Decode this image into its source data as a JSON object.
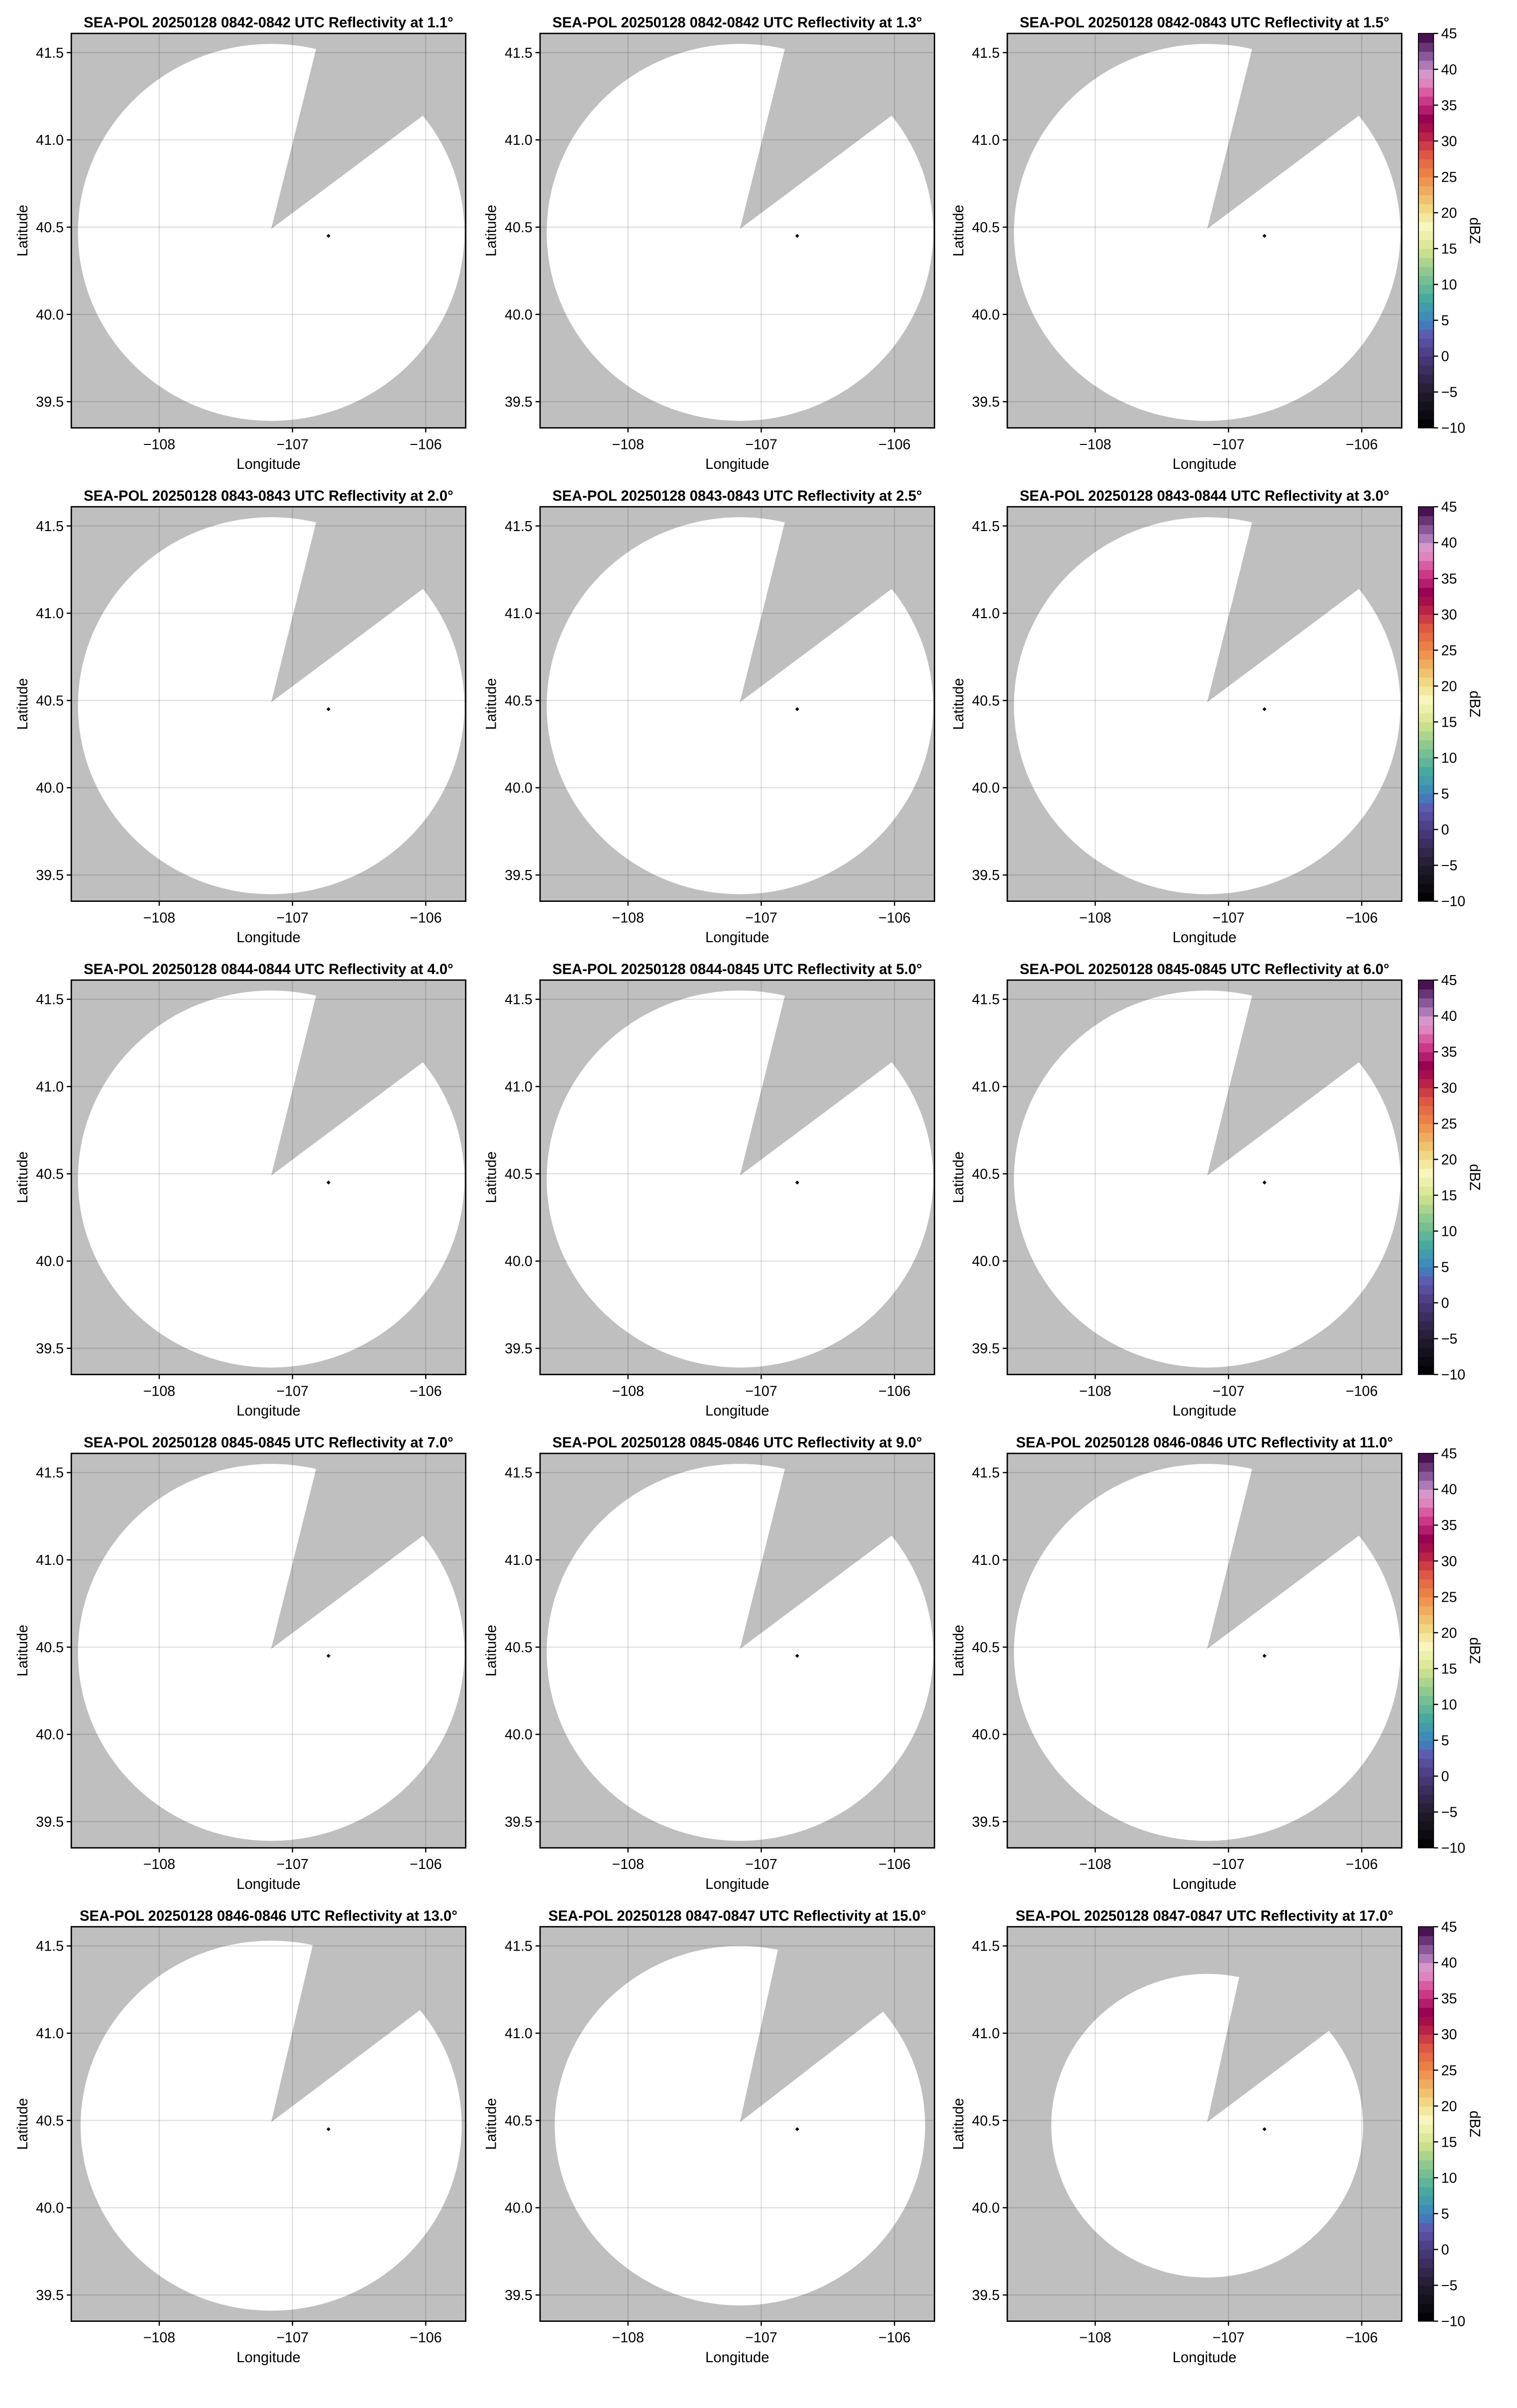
{
  "chart_data": {
    "type": "heatmap",
    "layout": {
      "rows": 5,
      "cols": 3
    },
    "xlabel": "Longitude",
    "ylabel": "Latitude",
    "xlim": [
      -108.66,
      -105.7
    ],
    "ylim": [
      39.35,
      41.61
    ],
    "xticks": [
      -108,
      -107,
      -106
    ],
    "xtick_labels": [
      "−108",
      "−107",
      "−106"
    ],
    "yticks": [
      39.5,
      40.0,
      40.5,
      41.0,
      41.5
    ],
    "ytick_labels": [
      "39.5",
      "40.0",
      "40.5",
      "41.0",
      "41.5"
    ],
    "grid": true,
    "background_color": "#bfbfbf",
    "coverage_color": "#ffffff",
    "colorbar": {
      "label": "dBZ",
      "range": [
        -10,
        45
      ],
      "ticks": [
        -10,
        -5,
        0,
        5,
        10,
        15,
        20,
        25,
        30,
        35,
        40,
        45
      ],
      "tick_labels": [
        "−10",
        "−5",
        "0",
        "5",
        "10",
        "15",
        "20",
        "25",
        "30",
        "35",
        "40",
        "45"
      ],
      "step": 2.5,
      "colormap_stops": [
        {
          "v": -10,
          "c": "#000000"
        },
        {
          "v": -5,
          "c": "#221c2e"
        },
        {
          "v": 0,
          "c": "#4a3a7e"
        },
        {
          "v": 3,
          "c": "#5e5ab0"
        },
        {
          "v": 5,
          "c": "#3d85c0"
        },
        {
          "v": 8,
          "c": "#46a8a0"
        },
        {
          "v": 11,
          "c": "#7cc291"
        },
        {
          "v": 15,
          "c": "#d6e48e"
        },
        {
          "v": 18,
          "c": "#f8f8c0"
        },
        {
          "v": 21,
          "c": "#f0d27a"
        },
        {
          "v": 25,
          "c": "#ee8a48"
        },
        {
          "v": 28,
          "c": "#e05a44"
        },
        {
          "v": 31,
          "c": "#b51a48"
        },
        {
          "v": 33,
          "c": "#960050"
        },
        {
          "v": 36,
          "c": "#d44090"
        },
        {
          "v": 39,
          "c": "#e4a0d0"
        },
        {
          "v": 41,
          "c": "#a070b0"
        },
        {
          "v": 45,
          "c": "#3a0040"
        }
      ]
    },
    "panels": [
      {
        "title": "SEA-POL 20250128 0842-0842 UTC Reflectivity at 1.1°",
        "elevation_deg": 1.1,
        "range_lon": 1.45,
        "range_lat": 1.08,
        "blocked_sector": [
          [
            -106.82,
            41.53
          ],
          [
            -106.02,
            41.14
          ]
        ]
      },
      {
        "title": "SEA-POL 20250128 0842-0842 UTC Reflectivity at 1.3°",
        "elevation_deg": 1.3,
        "range_lon": 1.45,
        "range_lat": 1.08,
        "blocked_sector": [
          [
            -106.82,
            41.53
          ],
          [
            -106.02,
            41.14
          ]
        ]
      },
      {
        "title": "SEA-POL 20250128 0842-0843 UTC Reflectivity at 1.5°",
        "elevation_deg": 1.5,
        "range_lon": 1.45,
        "range_lat": 1.08,
        "blocked_sector": [
          [
            -106.82,
            41.53
          ],
          [
            -106.02,
            41.14
          ]
        ]
      },
      {
        "title": "SEA-POL 20250128 0843-0843 UTC Reflectivity at 2.0°",
        "elevation_deg": 2.0,
        "range_lon": 1.45,
        "range_lat": 1.08,
        "blocked_sector": [
          [
            -106.82,
            41.53
          ],
          [
            -106.02,
            41.14
          ]
        ]
      },
      {
        "title": "SEA-POL 20250128 0843-0843 UTC Reflectivity at 2.5°",
        "elevation_deg": 2.5,
        "range_lon": 1.45,
        "range_lat": 1.08,
        "blocked_sector": [
          [
            -106.82,
            41.53
          ],
          [
            -106.02,
            41.14
          ]
        ]
      },
      {
        "title": "SEA-POL 20250128 0843-0844 UTC Reflectivity at 3.0°",
        "elevation_deg": 3.0,
        "range_lon": 1.45,
        "range_lat": 1.08,
        "blocked_sector": [
          [
            -106.82,
            41.53
          ],
          [
            -106.02,
            41.14
          ]
        ]
      },
      {
        "title": "SEA-POL 20250128 0844-0844 UTC Reflectivity at 4.0°",
        "elevation_deg": 4.0,
        "range_lon": 1.45,
        "range_lat": 1.08,
        "blocked_sector": [
          [
            -106.82,
            41.53
          ],
          [
            -106.02,
            41.14
          ]
        ]
      },
      {
        "title": "SEA-POL 20250128 0844-0845 UTC Reflectivity at 5.0°",
        "elevation_deg": 5.0,
        "range_lon": 1.45,
        "range_lat": 1.08,
        "blocked_sector": [
          [
            -106.82,
            41.53
          ],
          [
            -106.02,
            41.14
          ]
        ]
      },
      {
        "title": "SEA-POL 20250128 0845-0845 UTC Reflectivity at 6.0°",
        "elevation_deg": 6.0,
        "range_lon": 1.45,
        "range_lat": 1.08,
        "blocked_sector": [
          [
            -106.82,
            41.53
          ],
          [
            -106.02,
            41.14
          ]
        ]
      },
      {
        "title": "SEA-POL 20250128 0845-0845 UTC Reflectivity at 7.0°",
        "elevation_deg": 7.0,
        "range_lon": 1.45,
        "range_lat": 1.08,
        "blocked_sector": [
          [
            -106.82,
            41.53
          ],
          [
            -106.02,
            41.14
          ]
        ]
      },
      {
        "title": "SEA-POL 20250128 0845-0846 UTC Reflectivity at 9.0°",
        "elevation_deg": 9.0,
        "range_lon": 1.45,
        "range_lat": 1.08,
        "blocked_sector": [
          [
            -106.82,
            41.53
          ],
          [
            -106.02,
            41.14
          ]
        ]
      },
      {
        "title": "SEA-POL 20250128 0846-0846 UTC Reflectivity at 11.0°",
        "elevation_deg": 11.0,
        "range_lon": 1.45,
        "range_lat": 1.08,
        "blocked_sector": [
          [
            -106.82,
            41.53
          ],
          [
            -106.02,
            41.14
          ]
        ]
      },
      {
        "title": "SEA-POL 20250128 0846-0846 UTC Reflectivity at 13.0°",
        "elevation_deg": 13.0,
        "range_lon": 1.43,
        "range_lat": 1.06,
        "blocked_sector": [
          [
            -106.85,
            41.5
          ],
          [
            -106.1,
            41.1
          ]
        ]
      },
      {
        "title": "SEA-POL 20250128 0847-0847 UTC Reflectivity at 15.0°",
        "elevation_deg": 15.0,
        "range_lon": 1.39,
        "range_lat": 1.03,
        "blocked_sector": [
          [
            -106.88,
            41.46
          ],
          [
            -106.16,
            41.08
          ]
        ]
      },
      {
        "title": "SEA-POL 20250128 0847-0847 UTC Reflectivity at 17.0°",
        "elevation_deg": 17.0,
        "range_lon": 1.17,
        "range_lat": 0.87,
        "blocked_sector": [
          [
            -106.92,
            41.32
          ],
          [
            -106.27,
            41.0
          ]
        ]
      }
    ],
    "radar_location": [
      -107.16,
      40.47
    ],
    "marker": [
      -106.73,
      40.45
    ]
  }
}
